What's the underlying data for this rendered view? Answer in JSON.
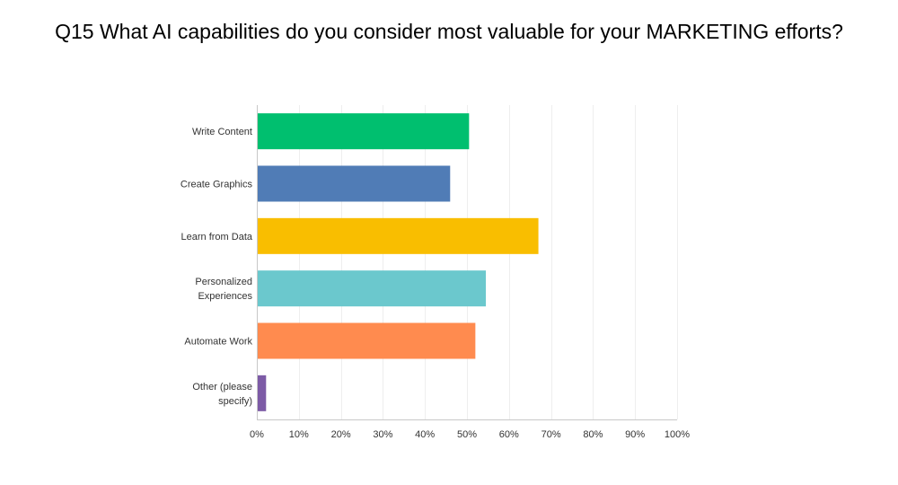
{
  "chart_data": {
    "type": "bar",
    "orientation": "horizontal",
    "title": "Q15 What AI capabilities do you consider most valuable for your MARKETING efforts?",
    "categories": [
      "Write Content",
      "Create Graphics",
      "Learn from Data",
      "Personalized Experiences",
      "Automate Work",
      "Other (please specify)"
    ],
    "category_lines": [
      [
        "Write Content"
      ],
      [
        "Create Graphics"
      ],
      [
        "Learn from Data"
      ],
      [
        "Personalized",
        "Experiences"
      ],
      [
        "Automate Work"
      ],
      [
        "Other (please",
        "specify)"
      ]
    ],
    "values": [
      50.5,
      46.0,
      67.0,
      54.5,
      52.0,
      2.2
    ],
    "colors": [
      "#00bf6f",
      "#507cb6",
      "#f9be00",
      "#6bc8cd",
      "#ff8b4f",
      "#7d5ba6"
    ],
    "xlim": [
      0,
      100
    ],
    "xticks": [
      0,
      10,
      20,
      30,
      40,
      50,
      60,
      70,
      80,
      90,
      100
    ],
    "xtick_labels": [
      "0%",
      "10%",
      "20%",
      "30%",
      "40%",
      "50%",
      "60%",
      "70%",
      "80%",
      "90%",
      "100%"
    ],
    "grid": true,
    "grid_color": "#eeeeee",
    "axis_color": "#c8c8c8"
  }
}
